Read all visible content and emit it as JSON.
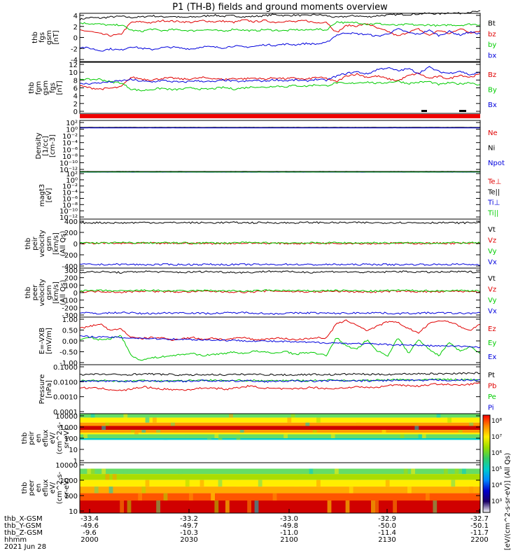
{
  "title": "P1 (TH-B) fields and ground moments overview",
  "colors": {
    "black": "#000000",
    "red": "#e00000",
    "green": "#00cc00",
    "blue": "#0000dd"
  },
  "chart_data": [
    {
      "type": "line",
      "panel": "fgs",
      "ylabel": [
        "thb",
        "fgs",
        "gsm",
        "[nT]"
      ],
      "yticks": [
        "4",
        "2",
        "0",
        "-2",
        "-4"
      ],
      "ylim": [
        -4,
        4
      ],
      "series": [
        {
          "name": "Bt",
          "color": "black",
          "values": [
            3.0,
            3.3,
            3.2,
            3.4,
            3.5,
            3.3,
            3.4,
            3.6,
            3.4,
            3.5,
            3.3,
            3.4,
            3.5,
            3.7,
            3.5,
            3.6,
            3.4,
            3.5,
            3.6,
            3.8,
            3.6,
            3.7,
            3.6,
            3.8,
            3.6,
            3.3,
            3.5,
            3.6,
            3.4,
            3.6,
            3.7,
            3.8,
            3.8,
            3.9,
            4.0,
            3.9,
            4.1,
            4.0,
            4.2,
            4.3
          ]
        },
        {
          "name": "bz",
          "color": "red",
          "values": [
            1.2,
            1.0,
            0.6,
            0.3,
            0.5,
            2.5,
            2.6,
            2.4,
            2.8,
            2.7,
            2.6,
            2.5,
            2.8,
            2.6,
            2.7,
            2.5,
            2.9,
            2.6,
            2.8,
            2.5,
            2.7,
            2.6,
            2.8,
            2.4,
            2.6,
            0.8,
            2.0,
            1.9,
            2.3,
            1.5,
            1.0,
            0.2,
            0.9,
            1.4,
            0.3,
            1.2,
            0.6,
            1.5,
            0.8,
            1.1
          ]
        },
        {
          "name": "by",
          "color": "green",
          "values": [
            2.4,
            2.3,
            2.2,
            2.0,
            2.1,
            1.2,
            1.0,
            1.4,
            1.1,
            1.3,
            1.2,
            1.1,
            1.3,
            1.2,
            1.0,
            1.4,
            1.2,
            1.1,
            1.3,
            1.2,
            1.1,
            1.3,
            1.2,
            1.4,
            1.2,
            2.6,
            2.4,
            2.5,
            2.2,
            2.3,
            2.1,
            2.0,
            2.2,
            2.0,
            2.1,
            1.9,
            2.1,
            2.0,
            2.2,
            2.1
          ]
        },
        {
          "name": "bx",
          "color": "blue",
          "values": [
            -1.6,
            -1.8,
            -2.2,
            -1.9,
            -2.1,
            -1.5,
            -1.8,
            -2.0,
            -1.7,
            -1.6,
            -1.8,
            -1.9,
            -1.5,
            -1.6,
            -1.7,
            -1.4,
            -1.6,
            -1.5,
            -1.2,
            -1.3,
            -1.1,
            -1.2,
            -1.0,
            -1.1,
            -0.9,
            0.4,
            0.8,
            0.6,
            0.5,
            0.2,
            0.6,
            1.4,
            0.8,
            0.5,
            1.2,
            0.3,
            1.0,
            0.4,
            0.9,
            0.6
          ]
        }
      ]
    },
    {
      "type": "line",
      "panel": "fgm",
      "ylabel": [
        "thb",
        "fgm",
        "gsm",
        "fgs",
        "[nT]"
      ],
      "yticks": [
        "12",
        "10",
        "8",
        "6",
        "4",
        "2",
        "0"
      ],
      "ylim": [
        0,
        13
      ],
      "series": [
        {
          "name": "Bz",
          "color": "red",
          "values": [
            7.0,
            6.5,
            6.2,
            6.4,
            6.7,
            9.2,
            8.8,
            8.5,
            8.9,
            9.0,
            8.7,
            8.8,
            9.1,
            8.9,
            8.6,
            8.9,
            8.8,
            9.0,
            8.7,
            9.1,
            8.8,
            9.0,
            8.6,
            9.2,
            8.9,
            8.0,
            9.6,
            10.0,
            9.2,
            9.5,
            8.8,
            8.3,
            9.6,
            10.2,
            8.9,
            9.4,
            8.8,
            9.8,
            9.2,
            10.0
          ]
        },
        {
          "name": "By",
          "color": "green",
          "values": [
            8.8,
            8.6,
            8.7,
            8.0,
            7.8,
            6.2,
            5.8,
            6.1,
            6.4,
            6.0,
            6.2,
            6.5,
            6.1,
            6.3,
            6.6,
            6.2,
            6.5,
            6.8,
            6.6,
            7.0,
            6.8,
            7.1,
            6.9,
            7.3,
            7.0,
            7.8,
            7.5,
            7.8,
            8.0,
            7.6,
            7.9,
            8.2,
            7.6,
            7.9,
            8.1,
            7.3,
            7.8,
            7.5,
            7.9,
            7.2
          ]
        },
        {
          "name": "Bx",
          "color": "blue",
          "values": [
            7.5,
            7.6,
            7.8,
            8.0,
            8.3,
            8.6,
            8.2,
            8.0,
            8.4,
            8.1,
            7.9,
            8.3,
            8.2,
            8.0,
            8.5,
            8.2,
            8.1,
            8.4,
            8.2,
            8.6,
            8.3,
            8.5,
            8.2,
            8.7,
            8.4,
            9.5,
            10.2,
            10.6,
            10.0,
            11.2,
            11.6,
            10.8,
            11.4,
            10.2,
            11.8,
            10.6,
            10.2,
            10.8,
            9.8,
            10.4
          ]
        }
      ]
    },
    {
      "type": "line",
      "panel": "density",
      "ylabel": [
        "Density",
        "[1/cc]",
        "[cm-3]"
      ],
      "yticks": [
        "10²",
        "10⁰",
        "10⁻²",
        "10⁻⁴",
        "10⁻⁶",
        "10⁻⁸",
        "10⁻¹⁰",
        "10⁻¹²"
      ],
      "ylim": [
        -13,
        2
      ],
      "scale": "log",
      "series": [
        {
          "name": "Ne",
          "color": "red",
          "values": [
            -0.1,
            -0.1,
            -0.1,
            -0.1,
            -0.1
          ]
        },
        {
          "name": "Ni",
          "color": "black",
          "values": [
            -0.05,
            -0.05,
            -0.05,
            -0.05,
            -0.05
          ]
        },
        {
          "name": "Npot",
          "color": "blue",
          "values": [
            -0.2,
            -0.2,
            -0.2,
            -0.2,
            -0.2
          ]
        }
      ]
    },
    {
      "type": "line",
      "panel": "temperature",
      "ylabel": [
        "magt3",
        "[eV]"
      ],
      "yticks": [
        "10²",
        "10⁰",
        "10⁻²",
        "10⁻⁴",
        "10⁻⁶",
        "10⁻⁸",
        "10⁻¹⁰",
        "10⁻¹²"
      ],
      "ylim": [
        -13,
        2
      ],
      "scale": "log",
      "series": [
        {
          "name": "Te⊥",
          "color": "red",
          "values": [
            1.9,
            1.9,
            1.9,
            1.9,
            1.9
          ]
        },
        {
          "name": "Te||",
          "color": "black",
          "values": [
            2.0,
            2.0,
            2.0,
            2.0,
            2.0
          ]
        },
        {
          "name": "Ti⊥",
          "color": "blue",
          "values": [
            1.8,
            1.8,
            1.8,
            1.8,
            1.8
          ]
        },
        {
          "name": "Ti||",
          "color": "green",
          "values": [
            1.85,
            1.85,
            1.85,
            1.85,
            1.85
          ]
        }
      ]
    },
    {
      "type": "line",
      "panel": "peir_velocity",
      "ylabel": [
        "thb",
        "peir",
        "velocity",
        "gsm",
        "[km/s]",
        "(All Qs)"
      ],
      "yticks": [
        "400",
        "200",
        "0",
        "-200",
        "-400"
      ],
      "ylim": [
        -400,
        400
      ],
      "series": [
        {
          "name": "Vt",
          "color": "black",
          "values": [
            340,
            342,
            338,
            345,
            341,
            343,
            339,
            344,
            340,
            342,
            338,
            345,
            341,
            343,
            339,
            344,
            340,
            342,
            338,
            345
          ]
        },
        {
          "name": "Vz",
          "color": "red",
          "values": [
            5,
            8,
            3,
            6,
            4,
            7,
            2,
            5,
            9,
            6,
            3,
            4,
            8,
            5,
            2,
            6,
            4,
            7,
            5,
            3
          ]
        },
        {
          "name": "Vy",
          "color": "green",
          "values": [
            12,
            10,
            14,
            11,
            13,
            9,
            12,
            10,
            15,
            11,
            12,
            10,
            14,
            11,
            13,
            9,
            12,
            10,
            13,
            11
          ]
        },
        {
          "name": "Vx",
          "color": "blue",
          "values": [
            -340,
            -342,
            -338,
            -345,
            -341,
            -343,
            -339,
            -344,
            -340,
            -342,
            -338,
            -345,
            -341,
            -343,
            -339,
            -344,
            -340,
            -342,
            -338,
            -345
          ]
        }
      ]
    },
    {
      "type": "line",
      "panel": "peer_velocity",
      "ylabel": [
        "thb",
        "peer",
        "velocity",
        "gsm",
        "[km/s]",
        "(All Qs)"
      ],
      "yticks": [
        "300",
        "200",
        "100",
        "0",
        "-100",
        "-200",
        "-300"
      ],
      "ylim": [
        -300,
        300
      ],
      "series": [
        {
          "name": "Vt",
          "color": "black",
          "values": [
            250,
            255,
            245,
            260,
            252,
            248,
            258,
            250,
            246,
            262,
            254,
            249,
            257,
            251,
            247,
            259,
            253,
            250,
            256,
            252
          ]
        },
        {
          "name": "Vz",
          "color": "red",
          "values": [
            10,
            15,
            5,
            20,
            12,
            8,
            18,
            10,
            6,
            22,
            14,
            9,
            17,
            11,
            7,
            19,
            13,
            10,
            16,
            12
          ]
        },
        {
          "name": "Vy",
          "color": "green",
          "values": [
            20,
            25,
            18,
            28,
            22,
            19,
            26,
            21,
            17,
            29,
            23,
            20,
            27,
            22,
            18,
            28,
            24,
            21,
            26,
            23
          ]
        },
        {
          "name": "Vx",
          "color": "blue",
          "values": [
            -248,
            -255,
            -242,
            -258,
            -250,
            -246,
            -256,
            -249,
            -244,
            -260,
            -252,
            -247,
            -255,
            -250,
            -245,
            -257,
            -251,
            -248,
            -254,
            -250
          ]
        }
      ]
    },
    {
      "type": "line",
      "panel": "efield",
      "ylabel": [
        "E=-VXB",
        "[mV/m]"
      ],
      "yticks": [
        "1.00",
        "0.50",
        "0.00",
        "-0.50",
        "-1.00"
      ],
      "ylim": [
        -1,
        1.1
      ],
      "series": [
        {
          "name": "Ez",
          "color": "red",
          "values": [
            0.6,
            0.7,
            0.8,
            0.5,
            0.6,
            0.2,
            0.15,
            0.2,
            0.18,
            0.1,
            0.15,
            0.2,
            0.12,
            0.18,
            0.1,
            0.15,
            0.2,
            0.1,
            0.12,
            0.18,
            0.15,
            0.1,
            0.14,
            0.2,
            0.16,
            0.8,
            0.95,
            0.75,
            0.5,
            0.7,
            0.9,
            0.85,
            0.6,
            0.4,
            0.8,
            0.95,
            0.9,
            0.7,
            0.5,
            0.8
          ]
        },
        {
          "name": "Ey",
          "color": "green",
          "values": [
            0.1,
            0.2,
            0.1,
            0.15,
            0.3,
            -0.6,
            -0.8,
            -0.7,
            -0.65,
            -0.6,
            -0.55,
            -0.5,
            -0.6,
            -0.55,
            -0.5,
            -0.45,
            -0.5,
            -0.4,
            -0.45,
            -0.5,
            -0.4,
            -0.55,
            -0.45,
            -0.5,
            -0.6,
            0.2,
            -0.2,
            -0.3,
            0.1,
            -0.4,
            -0.6,
            0.2,
            -0.5,
            0.1,
            -0.3,
            -0.6,
            0.0,
            -0.4,
            -0.2,
            -0.5
          ]
        },
        {
          "name": "Ex",
          "color": "blue",
          "values": [
            0.25,
            0.24,
            0.22,
            0.21,
            0.2,
            0.18,
            0.17,
            0.15,
            0.14,
            0.13,
            0.12,
            0.11,
            0.1,
            0.09,
            0.08,
            0.07,
            0.06,
            0.05,
            0.04,
            0.03,
            0.02,
            0.0,
            -0.01,
            -0.02,
            -0.03,
            -0.04,
            -0.06,
            -0.07,
            -0.08,
            -0.1,
            -0.11,
            -0.12,
            -0.13,
            -0.15,
            -0.16,
            -0.17,
            -0.18,
            -0.19,
            -0.2,
            -0.22
          ]
        }
      ]
    },
    {
      "type": "line",
      "panel": "pressure",
      "ylabel": [
        "Pressure",
        "[nPa]"
      ],
      "yticks": [
        "0.1000",
        "0.0100",
        "0.0010",
        "0.0001"
      ],
      "ylim": [
        -4.1,
        -0.9
      ],
      "scale": "log",
      "series": [
        {
          "name": "Pt",
          "color": "black",
          "values": [
            -1.55,
            -1.52,
            -1.56,
            -1.5,
            -1.53,
            -1.58,
            -1.54,
            -1.56,
            -1.52,
            -1.55,
            -1.57,
            -1.53,
            -1.55,
            -1.5,
            -1.54,
            -1.52,
            -1.48,
            -1.5,
            -1.46,
            -1.45
          ]
        },
        {
          "name": "Pb",
          "color": "red",
          "values": [
            -2.4,
            -2.45,
            -2.6,
            -2.35,
            -2.5,
            -2.55,
            -2.4,
            -2.5,
            -2.3,
            -2.45,
            -2.5,
            -2.38,
            -2.48,
            -2.35,
            -2.4,
            -2.2,
            -2.3,
            -2.15,
            -2.25,
            -2.1
          ]
        },
        {
          "name": "Pe",
          "color": "green",
          "values": [
            -1.95,
            -1.92,
            -1.98,
            -1.93,
            -1.96,
            -1.94,
            -1.9,
            -1.95,
            -1.92,
            -1.97,
            -1.93,
            -1.95,
            -1.9,
            -1.94,
            -1.92,
            -1.88,
            -1.9,
            -1.86,
            -1.88,
            -1.85
          ]
        },
        {
          "name": "Pi",
          "color": "blue",
          "values": [
            -1.98,
            -1.96,
            -2.0,
            -1.95,
            -1.98,
            -1.97,
            -1.94,
            -1.98,
            -1.95,
            -2.0,
            -1.96,
            -1.98,
            -1.94,
            -1.97,
            -1.95,
            -1.92,
            -1.94,
            -1.9,
            -1.92,
            -1.9
          ]
        }
      ]
    },
    {
      "type": "heatmap",
      "panel": "peir_spectrogram",
      "ylabel": [
        "thb",
        "peir",
        "en",
        "eflux",
        "eV/",
        "(cm^2-s-",
        "sr-eV)"
      ],
      "yticks": [
        "10000",
        "1000",
        "100",
        "10",
        "1"
      ],
      "ylim": [
        0,
        4.4
      ],
      "scale": "log"
    },
    {
      "type": "heatmap",
      "panel": "peer_spectrogram",
      "ylabel": [
        "thb",
        "peer",
        "en",
        "eflux",
        "eV/",
        "(cm^2-s-",
        "sr-eV)"
      ],
      "yticks": [
        "10000",
        "1000",
        "100",
        "10"
      ],
      "ylim": [
        0.5,
        4.3
      ],
      "scale": "log"
    }
  ],
  "colorbar": {
    "ticks": [
      "10⁸",
      "10⁷",
      "10⁶",
      "10⁵",
      "10⁴",
      "10³"
    ],
    "label": "[eV/(cm^2-s-sr-eV)] (All Qs)"
  },
  "xaxis": {
    "rows": [
      {
        "label": "thb_X-GSM",
        "values": [
          "-33.4",
          "-33.2",
          "-33.0",
          "-32.9",
          "-32.7"
        ]
      },
      {
        "label": "thb_Y-GSM",
        "values": [
          "-49.6",
          "-49.7",
          "-49.8",
          "-50.0",
          "-50.1"
        ]
      },
      {
        "label": "thb_Z-GSM",
        "values": [
          "-9.6",
          "-10.3",
          "-11.0",
          "-11.4",
          "-11.7"
        ]
      },
      {
        "label": "hhmm",
        "values": [
          "2000",
          "2030",
          "2100",
          "2130",
          "2200"
        ]
      }
    ],
    "date": "2021 Jun 28"
  }
}
